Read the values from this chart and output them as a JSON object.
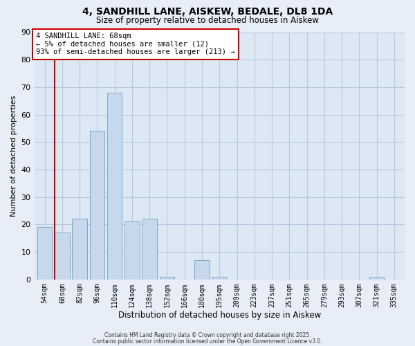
{
  "title": "4, SANDHILL LANE, AISKEW, BEDALE, DL8 1DA",
  "subtitle": "Size of property relative to detached houses in Aiskew",
  "xlabel": "Distribution of detached houses by size in Aiskew",
  "ylabel": "Number of detached properties",
  "bar_color": "#c8d8ec",
  "bar_edge_color": "#7aaac8",
  "highlight_color": "#cc0000",
  "categories": [
    "54sqm",
    "68sqm",
    "82sqm",
    "96sqm",
    "110sqm",
    "124sqm",
    "138sqm",
    "152sqm",
    "166sqm",
    "180sqm",
    "195sqm",
    "209sqm",
    "223sqm",
    "237sqm",
    "251sqm",
    "265sqm",
    "279sqm",
    "293sqm",
    "307sqm",
    "321sqm",
    "335sqm"
  ],
  "values": [
    19,
    17,
    22,
    54,
    68,
    21,
    22,
    1,
    0,
    7,
    1,
    0,
    0,
    0,
    0,
    0,
    0,
    0,
    0,
    1,
    0
  ],
  "highlight_bar_index": 1,
  "ylim": [
    0,
    90
  ],
  "yticks": [
    0,
    10,
    20,
    30,
    40,
    50,
    60,
    70,
    80,
    90
  ],
  "annotation_title": "4 SANDHILL LANE: 68sqm",
  "annotation_line1": "← 5% of detached houses are smaller (12)",
  "annotation_line2": "93% of semi-detached houses are larger (213) →",
  "footer_line1": "Contains HM Land Registry data © Crown copyright and database right 2025.",
  "footer_line2": "Contains public sector information licensed under the Open Government Licence v3.0.",
  "bg_color": "#e8eef8",
  "plot_bg_color": "#dce8f4",
  "grid_color": "#b8c8dc"
}
